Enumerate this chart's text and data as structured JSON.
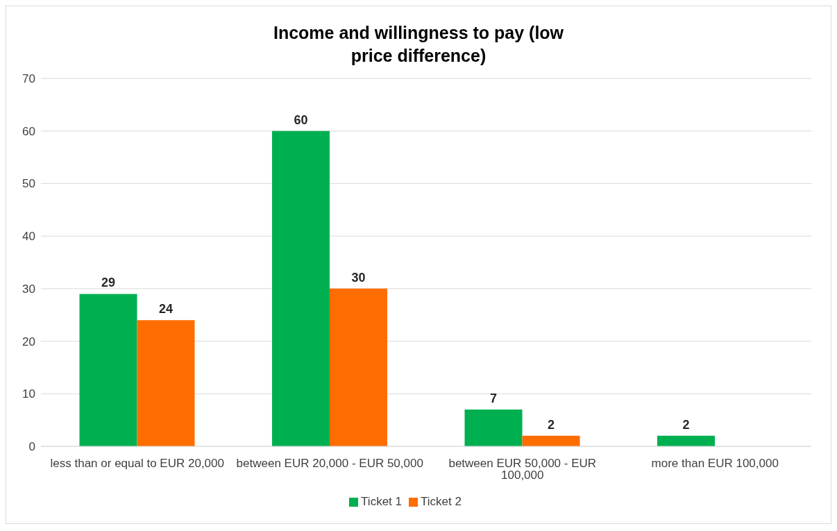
{
  "chart_data": {
    "type": "bar",
    "title": "Income and willingness to pay (low price difference)",
    "categories": [
      "less than or equal to EUR 20,000",
      "between EUR 20,000 - EUR 50,000",
      "between EUR 50,000 - EUR 100,000",
      "more than EUR 100,000"
    ],
    "series": [
      {
        "name": "Ticket 1",
        "color": "#00b050",
        "values": [
          29,
          60,
          7,
          2
        ]
      },
      {
        "name": "Ticket 2",
        "color": "#ff6d00",
        "values": [
          24,
          30,
          2,
          null
        ]
      }
    ],
    "ylim": [
      0,
      70
    ],
    "yticks": [
      0,
      10,
      20,
      30,
      40,
      50,
      60,
      70
    ],
    "grid": "y",
    "legend": "bottom",
    "data_labels": true
  }
}
